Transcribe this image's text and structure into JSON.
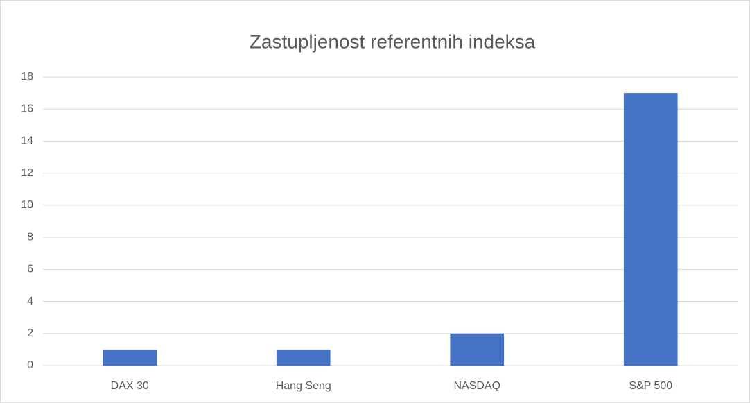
{
  "chart_data": {
    "type": "bar",
    "title": "Zastupljenost referentnih indeksa",
    "categories": [
      "DAX 30",
      "Hang Seng",
      "NASDAQ",
      "S&P 500"
    ],
    "values": [
      1,
      1,
      2,
      17
    ],
    "color": "#4472c4",
    "ylim": [
      0,
      18
    ],
    "yticks": [
      0,
      2,
      4,
      6,
      8,
      10,
      12,
      14,
      16,
      18
    ],
    "grid": true
  }
}
